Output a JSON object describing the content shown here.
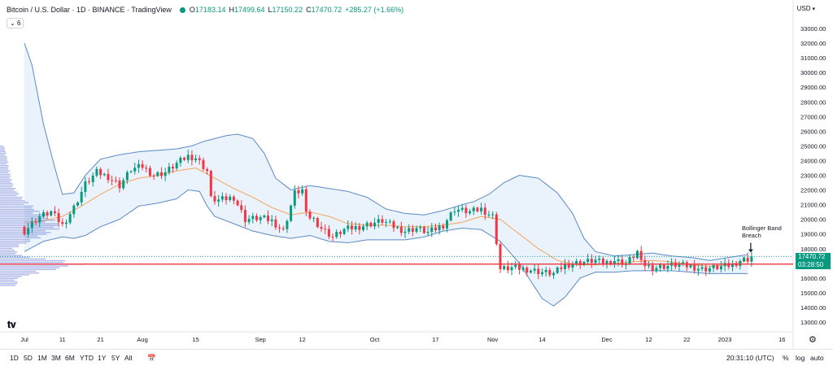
{
  "header": {
    "symbol": "Bitcoin / U.S. Dollar · 1D · BINANCE · TradingView",
    "o_label": "O",
    "o": "17183.14",
    "h_label": "H",
    "h": "17499.64",
    "l_label": "L",
    "l": "17150.22",
    "c_label": "C",
    "c": "17470.72",
    "change": "+285.27 (+1.66%)",
    "sub_indicator": "6"
  },
  "currency": "USD",
  "price_tag": "17470.72",
  "countdown": "03:28:50",
  "annotation": {
    "line1": "Bollinger Band",
    "line2": "Breach"
  },
  "bottom_bar": {
    "timeframes": [
      "1D",
      "5D",
      "1M",
      "3M",
      "6M",
      "YTD",
      "1Y",
      "5Y",
      "All"
    ],
    "time": "20:31:10 (UTC)",
    "percent": "%",
    "log": "log",
    "auto": "auto"
  },
  "colors": {
    "up": "#089981",
    "down": "#f23645",
    "band": "#5b8ac7",
    "band_fill": "#eaf3fb",
    "basis": "#f7a35c",
    "volume_profile": "#6c7fd6",
    "support_line": "#f23645"
  },
  "chart_data": {
    "type": "candlestick",
    "title": "Bitcoin / U.S. Dollar · 1D · BINANCE · TradingView",
    "ylim": [
      12000,
      34500
    ],
    "yticks": [
      13000,
      14000,
      15000,
      16000,
      17000,
      18000,
      19000,
      20000,
      21000,
      22000,
      23000,
      24000,
      25000,
      26000,
      27000,
      28000,
      29000,
      30000,
      31000,
      32000,
      33000
    ],
    "xticks": [
      {
        "label": "Jul",
        "day": 0
      },
      {
        "label": "11",
        "day": 10
      },
      {
        "label": "21",
        "day": 20
      },
      {
        "label": "Aug",
        "day": 31
      },
      {
        "label": "15",
        "day": 45
      },
      {
        "label": "Sep",
        "day": 62
      },
      {
        "label": "12",
        "day": 73
      },
      {
        "label": "Oct",
        "day": 92
      },
      {
        "label": "17",
        "day": 108
      },
      {
        "label": "Nov",
        "day": 123
      },
      {
        "label": "14",
        "day": 136
      },
      {
        "label": "Dec",
        "day": 153
      },
      {
        "label": "12",
        "day": 164
      },
      {
        "label": "22",
        "day": 174
      },
      {
        "label": "2023",
        "day": 184
      },
      {
        "label": "16",
        "day": 199
      }
    ],
    "close_key": [
      [
        0,
        19200
      ],
      [
        4,
        20200
      ],
      [
        7,
        20500
      ],
      [
        10,
        19600
      ],
      [
        13,
        20800
      ],
      [
        16,
        22400
      ],
      [
        19,
        23200
      ],
      [
        22,
        22900
      ],
      [
        25,
        22300
      ],
      [
        28,
        23400
      ],
      [
        31,
        23600
      ],
      [
        34,
        23000
      ],
      [
        37,
        23200
      ],
      [
        40,
        23800
      ],
      [
        43,
        24300
      ],
      [
        45,
        24200
      ],
      [
        48,
        23300
      ],
      [
        49,
        21400
      ],
      [
        51,
        21300
      ],
      [
        55,
        21500
      ],
      [
        58,
        20000
      ],
      [
        62,
        20100
      ],
      [
        65,
        19900
      ],
      [
        68,
        19200
      ],
      [
        71,
        21800
      ],
      [
        73,
        22000
      ],
      [
        74,
        20300
      ],
      [
        76,
        20000
      ],
      [
        78,
        19400
      ],
      [
        81,
        18800
      ],
      [
        84,
        19300
      ],
      [
        88,
        19500
      ],
      [
        91,
        19700
      ],
      [
        94,
        19900
      ],
      [
        97,
        19500
      ],
      [
        100,
        19200
      ],
      [
        103,
        19400
      ],
      [
        106,
        19100
      ],
      [
        110,
        19600
      ],
      [
        113,
        20700
      ],
      [
        117,
        20500
      ],
      [
        120,
        20700
      ],
      [
        123,
        20200
      ],
      [
        124,
        18500
      ],
      [
        125,
        16600
      ],
      [
        128,
        16700
      ],
      [
        132,
        16600
      ],
      [
        136,
        16400
      ],
      [
        139,
        16300
      ],
      [
        142,
        16900
      ],
      [
        147,
        17100
      ],
      [
        150,
        17200
      ],
      [
        152,
        17000
      ],
      [
        155,
        17200
      ],
      [
        158,
        17000
      ],
      [
        160,
        17500
      ],
      [
        161,
        17800
      ],
      [
        162,
        17000
      ],
      [
        165,
        16700
      ],
      [
        168,
        16800
      ],
      [
        171,
        16900
      ],
      [
        175,
        16800
      ],
      [
        178,
        16600
      ],
      [
        181,
        16700
      ],
      [
        184,
        16800
      ],
      [
        186,
        16900
      ],
      [
        188,
        17200
      ],
      [
        190,
        17300
      ],
      [
        191,
        17470.72
      ]
    ],
    "bollinger_basis_key": [
      [
        0,
        19800
      ],
      [
        5,
        19900
      ],
      [
        10,
        20200
      ],
      [
        15,
        20900
      ],
      [
        20,
        21700
      ],
      [
        25,
        22400
      ],
      [
        30,
        22800
      ],
      [
        35,
        23000
      ],
      [
        40,
        23300
      ],
      [
        45,
        23500
      ],
      [
        50,
        22800
      ],
      [
        55,
        22100
      ],
      [
        60,
        21500
      ],
      [
        65,
        20800
      ],
      [
        70,
        20300
      ],
      [
        75,
        20500
      ],
      [
        80,
        20200
      ],
      [
        85,
        19700
      ],
      [
        90,
        19600
      ],
      [
        95,
        19600
      ],
      [
        100,
        19500
      ],
      [
        105,
        19500
      ],
      [
        110,
        19600
      ],
      [
        115,
        19800
      ],
      [
        120,
        20200
      ],
      [
        125,
        20000
      ],
      [
        130,
        19000
      ],
      [
        135,
        18000
      ],
      [
        140,
        17200
      ],
      [
        145,
        16900
      ],
      [
        150,
        16900
      ],
      [
        155,
        17000
      ],
      [
        160,
        17100
      ],
      [
        165,
        17200
      ],
      [
        170,
        17100
      ],
      [
        175,
        16900
      ],
      [
        180,
        16800
      ],
      [
        185,
        16900
      ],
      [
        190,
        17200
      ]
    ],
    "bollinger_upper_key": [
      [
        0,
        32000
      ],
      [
        2,
        30500
      ],
      [
        5,
        26500
      ],
      [
        8,
        23500
      ],
      [
        10,
        21700
      ],
      [
        13,
        21800
      ],
      [
        16,
        23000
      ],
      [
        20,
        24100
      ],
      [
        25,
        24400
      ],
      [
        30,
        24600
      ],
      [
        35,
        24700
      ],
      [
        40,
        24800
      ],
      [
        44,
        25000
      ],
      [
        47,
        25300
      ],
      [
        50,
        25500
      ],
      [
        53,
        25700
      ],
      [
        56,
        25800
      ],
      [
        60,
        25500
      ],
      [
        63,
        24500
      ],
      [
        66,
        22800
      ],
      [
        70,
        22000
      ],
      [
        75,
        22300
      ],
      [
        80,
        22100
      ],
      [
        85,
        21900
      ],
      [
        90,
        21500
      ],
      [
        95,
        20700
      ],
      [
        100,
        20400
      ],
      [
        105,
        20300
      ],
      [
        110,
        20600
      ],
      [
        115,
        21000
      ],
      [
        118,
        21200
      ],
      [
        122,
        21700
      ],
      [
        126,
        22500
      ],
      [
        130,
        23000
      ],
      [
        135,
        22800
      ],
      [
        140,
        21800
      ],
      [
        144,
        20400
      ],
      [
        147,
        18700
      ],
      [
        150,
        17800
      ],
      [
        155,
        17500
      ],
      [
        160,
        17600
      ],
      [
        165,
        17700
      ],
      [
        170,
        17500
      ],
      [
        175,
        17400
      ],
      [
        180,
        17200
      ],
      [
        185,
        17400
      ],
      [
        190,
        17600
      ]
    ],
    "bollinger_lower_key": [
      [
        0,
        17800
      ],
      [
        5,
        18500
      ],
      [
        10,
        18800
      ],
      [
        13,
        18700
      ],
      [
        16,
        18900
      ],
      [
        20,
        19500
      ],
      [
        25,
        20000
      ],
      [
        30,
        20900
      ],
      [
        35,
        21100
      ],
      [
        40,
        21400
      ],
      [
        43,
        22000
      ],
      [
        46,
        21900
      ],
      [
        48,
        20900
      ],
      [
        50,
        20200
      ],
      [
        55,
        19700
      ],
      [
        60,
        19200
      ],
      [
        65,
        18900
      ],
      [
        70,
        18700
      ],
      [
        75,
        18900
      ],
      [
        80,
        18500
      ],
      [
        85,
        18400
      ],
      [
        90,
        18600
      ],
      [
        95,
        18600
      ],
      [
        100,
        18600
      ],
      [
        105,
        18800
      ],
      [
        110,
        19200
      ],
      [
        115,
        19400
      ],
      [
        120,
        19300
      ],
      [
        125,
        18500
      ],
      [
        130,
        17000
      ],
      [
        133,
        15800
      ],
      [
        136,
        14600
      ],
      [
        139,
        14100
      ],
      [
        142,
        14700
      ],
      [
        146,
        16000
      ],
      [
        150,
        16400
      ],
      [
        155,
        16400
      ],
      [
        160,
        16500
      ],
      [
        165,
        16500
      ],
      [
        170,
        16500
      ],
      [
        175,
        16400
      ],
      [
        180,
        16300
      ],
      [
        185,
        16300
      ],
      [
        190,
        16300
      ]
    ],
    "horizontal_line": 16950,
    "last_price": 17470.72,
    "volume_profile_key": [
      [
        16000,
        0.2
      ],
      [
        16500,
        0.55
      ],
      [
        17000,
        1.0
      ],
      [
        17500,
        0.25
      ],
      [
        18000,
        0.15
      ],
      [
        18500,
        0.35
      ],
      [
        19000,
        0.55
      ],
      [
        19500,
        0.7
      ],
      [
        20000,
        0.6
      ],
      [
        20500,
        0.45
      ],
      [
        21000,
        0.35
      ],
      [
        21500,
        0.25
      ],
      [
        22000,
        0.18
      ],
      [
        22500,
        0.14
      ],
      [
        23000,
        0.12
      ],
      [
        23500,
        0.1
      ],
      [
        24000,
        0.09
      ],
      [
        24500,
        0.07
      ],
      [
        25000,
        0.05
      ]
    ],
    "annotation": "Bollinger Band Breach"
  }
}
